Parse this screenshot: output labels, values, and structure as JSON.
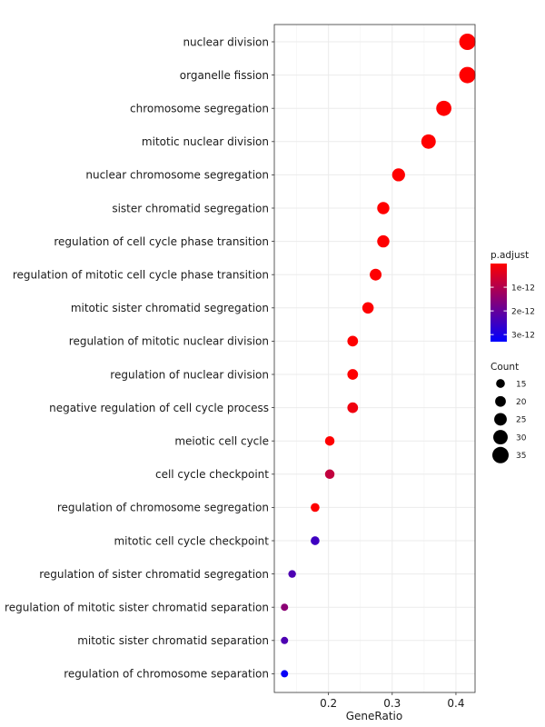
{
  "chart_data": {
    "type": "scatter",
    "xlabel": "GeneRatio",
    "ylabel": "",
    "xlim": [
      0.115,
      0.43
    ],
    "x_ticks": [
      {
        "value": 0.2,
        "label": "0.2"
      },
      {
        "value": 0.3,
        "label": "0.3"
      },
      {
        "value": 0.4,
        "label": "0.4"
      }
    ],
    "grid": true,
    "categories": [
      "nuclear division",
      "organelle fission",
      "chromosome segregation",
      "mitotic nuclear division",
      "nuclear chromosome segregation",
      "sister chromatid segregation",
      "regulation of cell cycle phase transition",
      "regulation of mitotic cell cycle phase transition",
      "mitotic sister chromatid segregation",
      "regulation of mitotic nuclear division",
      "regulation of nuclear division",
      "negative regulation of cell cycle process",
      "meiotic cell cycle",
      "cell cycle checkpoint",
      "regulation of chromosome segregation",
      "mitotic cell cycle checkpoint",
      "regulation of sister chromatid segregation",
      "regulation of mitotic sister chromatid separation",
      "mitotic sister chromatid separation",
      "regulation of chromosome separation"
    ],
    "points": [
      {
        "term": "nuclear division",
        "gene_ratio": 0.418,
        "count": 35,
        "p_adjust": 1e-16
      },
      {
        "term": "organelle fission",
        "gene_ratio": 0.418,
        "count": 35,
        "p_adjust": 3e-16
      },
      {
        "term": "chromosome segregation",
        "gene_ratio": 0.381,
        "count": 32,
        "p_adjust": 1e-16
      },
      {
        "term": "mitotic nuclear division",
        "gene_ratio": 0.357,
        "count": 30,
        "p_adjust": 2e-16
      },
      {
        "term": "nuclear chromosome segregation",
        "gene_ratio": 0.31,
        "count": 26,
        "p_adjust": 1e-15
      },
      {
        "term": "sister chromatid segregation",
        "gene_ratio": 0.286,
        "count": 24,
        "p_adjust": 1e-15
      },
      {
        "term": "regulation of cell cycle phase transition",
        "gene_ratio": 0.286,
        "count": 24,
        "p_adjust": 1e-14
      },
      {
        "term": "regulation of mitotic cell cycle phase transition",
        "gene_ratio": 0.274,
        "count": 23,
        "p_adjust": 1e-14
      },
      {
        "term": "mitotic sister chromatid segregation",
        "gene_ratio": 0.262,
        "count": 22,
        "p_adjust": 1e-14
      },
      {
        "term": "regulation of mitotic nuclear division",
        "gene_ratio": 0.238,
        "count": 20,
        "p_adjust": 1e-14
      },
      {
        "term": "regulation of nuclear division",
        "gene_ratio": 0.238,
        "count": 20,
        "p_adjust": 1e-14
      },
      {
        "term": "negative regulation of cell cycle process",
        "gene_ratio": 0.238,
        "count": 20,
        "p_adjust": 2e-13
      },
      {
        "term": "meiotic cell cycle",
        "gene_ratio": 0.202,
        "count": 17,
        "p_adjust": 1e-14
      },
      {
        "term": "cell cycle checkpoint",
        "gene_ratio": 0.202,
        "count": 17,
        "p_adjust": 8e-13
      },
      {
        "term": "regulation of chromosome segregation",
        "gene_ratio": 0.179,
        "count": 15,
        "p_adjust": 1e-14
      },
      {
        "term": "mitotic cell cycle checkpoint",
        "gene_ratio": 0.179,
        "count": 15,
        "p_adjust": 2.5e-12
      },
      {
        "term": "regulation of sister chromatid segregation",
        "gene_ratio": 0.143,
        "count": 12,
        "p_adjust": 2.3e-12
      },
      {
        "term": "regulation of mitotic sister chromatid separation",
        "gene_ratio": 0.131,
        "count": 11,
        "p_adjust": 1.5e-12
      },
      {
        "term": "mitotic sister chromatid separation",
        "gene_ratio": 0.131,
        "count": 11,
        "p_adjust": 2.3e-12
      },
      {
        "term": "regulation of chromosome separation",
        "gene_ratio": 0.131,
        "count": 11,
        "p_adjust": 3.2e-12
      }
    ],
    "color_legend": {
      "title": "p.adjust",
      "ticks": [
        {
          "value": 1e-12,
          "label": "1e-12"
        },
        {
          "value": 2e-12,
          "label": "2e-12"
        },
        {
          "value": 3e-12,
          "label": "3e-12"
        }
      ],
      "range": [
        0,
        3.3e-12
      ],
      "low_color": "#ff0000",
      "high_color": "#0000ff"
    },
    "size_legend": {
      "title": "Count",
      "values": [
        15,
        20,
        25,
        30,
        35
      ]
    },
    "count_domain": [
      11,
      35
    ],
    "legend_position": "right"
  }
}
